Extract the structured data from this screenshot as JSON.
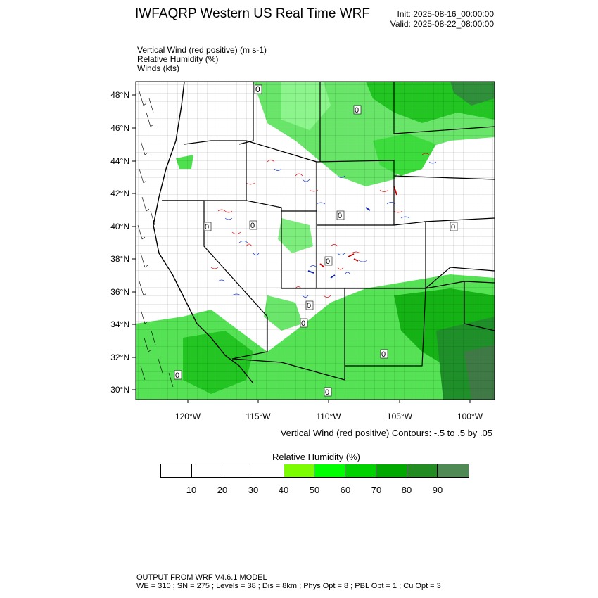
{
  "header": {
    "title": "IWFAQRP Western US Real Time WRF",
    "init": "Init: 2025-08-16_00:00:00",
    "valid": "Valid: 2025-08-22_08:00:00"
  },
  "fields": [
    "Vertical Wind (red positive)   (m s-1)",
    "Relative Humidity   (%)",
    "Winds   (kts)"
  ],
  "map": {
    "lat_labels": [
      "48°N",
      "46°N",
      "44°N",
      "42°N",
      "40°N",
      "38°N",
      "36°N",
      "34°N",
      "32°N",
      "30°N"
    ],
    "lon_labels": [
      "120°W",
      "115°W",
      "110°W",
      "105°W",
      "100°W"
    ],
    "station_label": "0"
  },
  "contour_note": "Vertical Wind (red positive) Contours: -.5 to .5 by .05",
  "colorbar": {
    "title": "Relative Humidity   (%)",
    "labels": [
      "10",
      "20",
      "30",
      "40",
      "50",
      "60",
      "70",
      "80",
      "90"
    ],
    "colors": [
      "#ffffff",
      "#ffffff",
      "#ffffff",
      "#ffffff",
      "#7cfc00",
      "#00ff00",
      "#00d200",
      "#00a800",
      "#228b22",
      "#4f8a55"
    ]
  },
  "footer": {
    "line1": "OUTPUT FROM WRF V4.6.1 MODEL",
    "line2": "WE = 310 ; SN = 275 ; Levels = 38 ; Dis = 8km ; Phys Opt = 8 ; PBL Opt = 1 ; Cu Opt = 3"
  }
}
